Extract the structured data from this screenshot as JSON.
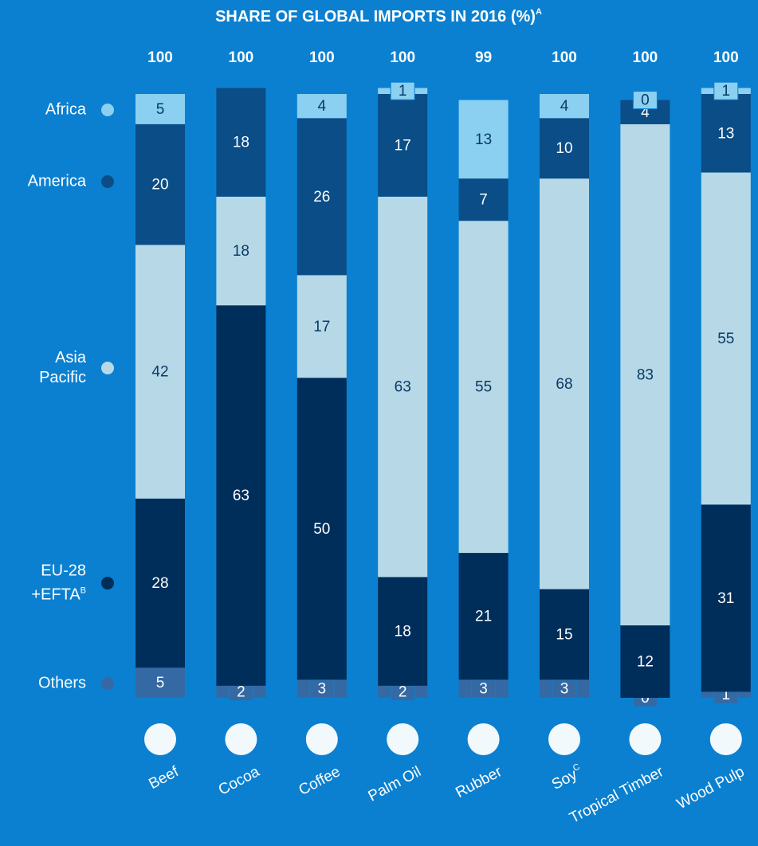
{
  "chart_data": {
    "type": "stacked_bar",
    "title": "SHARE OF GLOBAL IMPORTS IN 2016 (%)",
    "title_note": "A",
    "categories": [
      "Beef",
      "Cocoa",
      "Coffee",
      "Palm Oil",
      "Rubber",
      "Soy",
      "Tropical Timber",
      "Wood Pulp"
    ],
    "category_notes": [
      null,
      null,
      null,
      null,
      null,
      "C",
      null,
      null
    ],
    "totals": [
      100,
      100,
      100,
      100,
      99,
      100,
      100,
      100
    ],
    "ylim": [
      0,
      100
    ],
    "series": [
      {
        "name": "Others",
        "color": "#3569a3",
        "text_color": "#ffffff",
        "values": [
          5,
          2,
          3,
          2,
          3,
          3,
          0,
          1
        ]
      },
      {
        "name": "EU-28 +EFTA",
        "note": "B",
        "color": "#002e5b",
        "text_color": "#ffffff",
        "values": [
          28,
          63,
          50,
          18,
          21,
          15,
          12,
          31
        ]
      },
      {
        "name": "Asia Pacific",
        "color": "#b7d9e7",
        "text_color": "#0a3a66",
        "values": [
          42,
          18,
          17,
          63,
          55,
          68,
          83,
          55
        ]
      },
      {
        "name": "America",
        "color": "#0a4d87",
        "text_color": "#ffffff",
        "values": [
          20,
          18,
          26,
          17,
          7,
          10,
          4,
          13
        ]
      },
      {
        "name": "Africa",
        "color": "#8bd0f0",
        "text_color": "#0a3a66",
        "values": [
          5,
          null,
          4,
          1,
          13,
          4,
          0,
          1
        ]
      }
    ]
  }
}
